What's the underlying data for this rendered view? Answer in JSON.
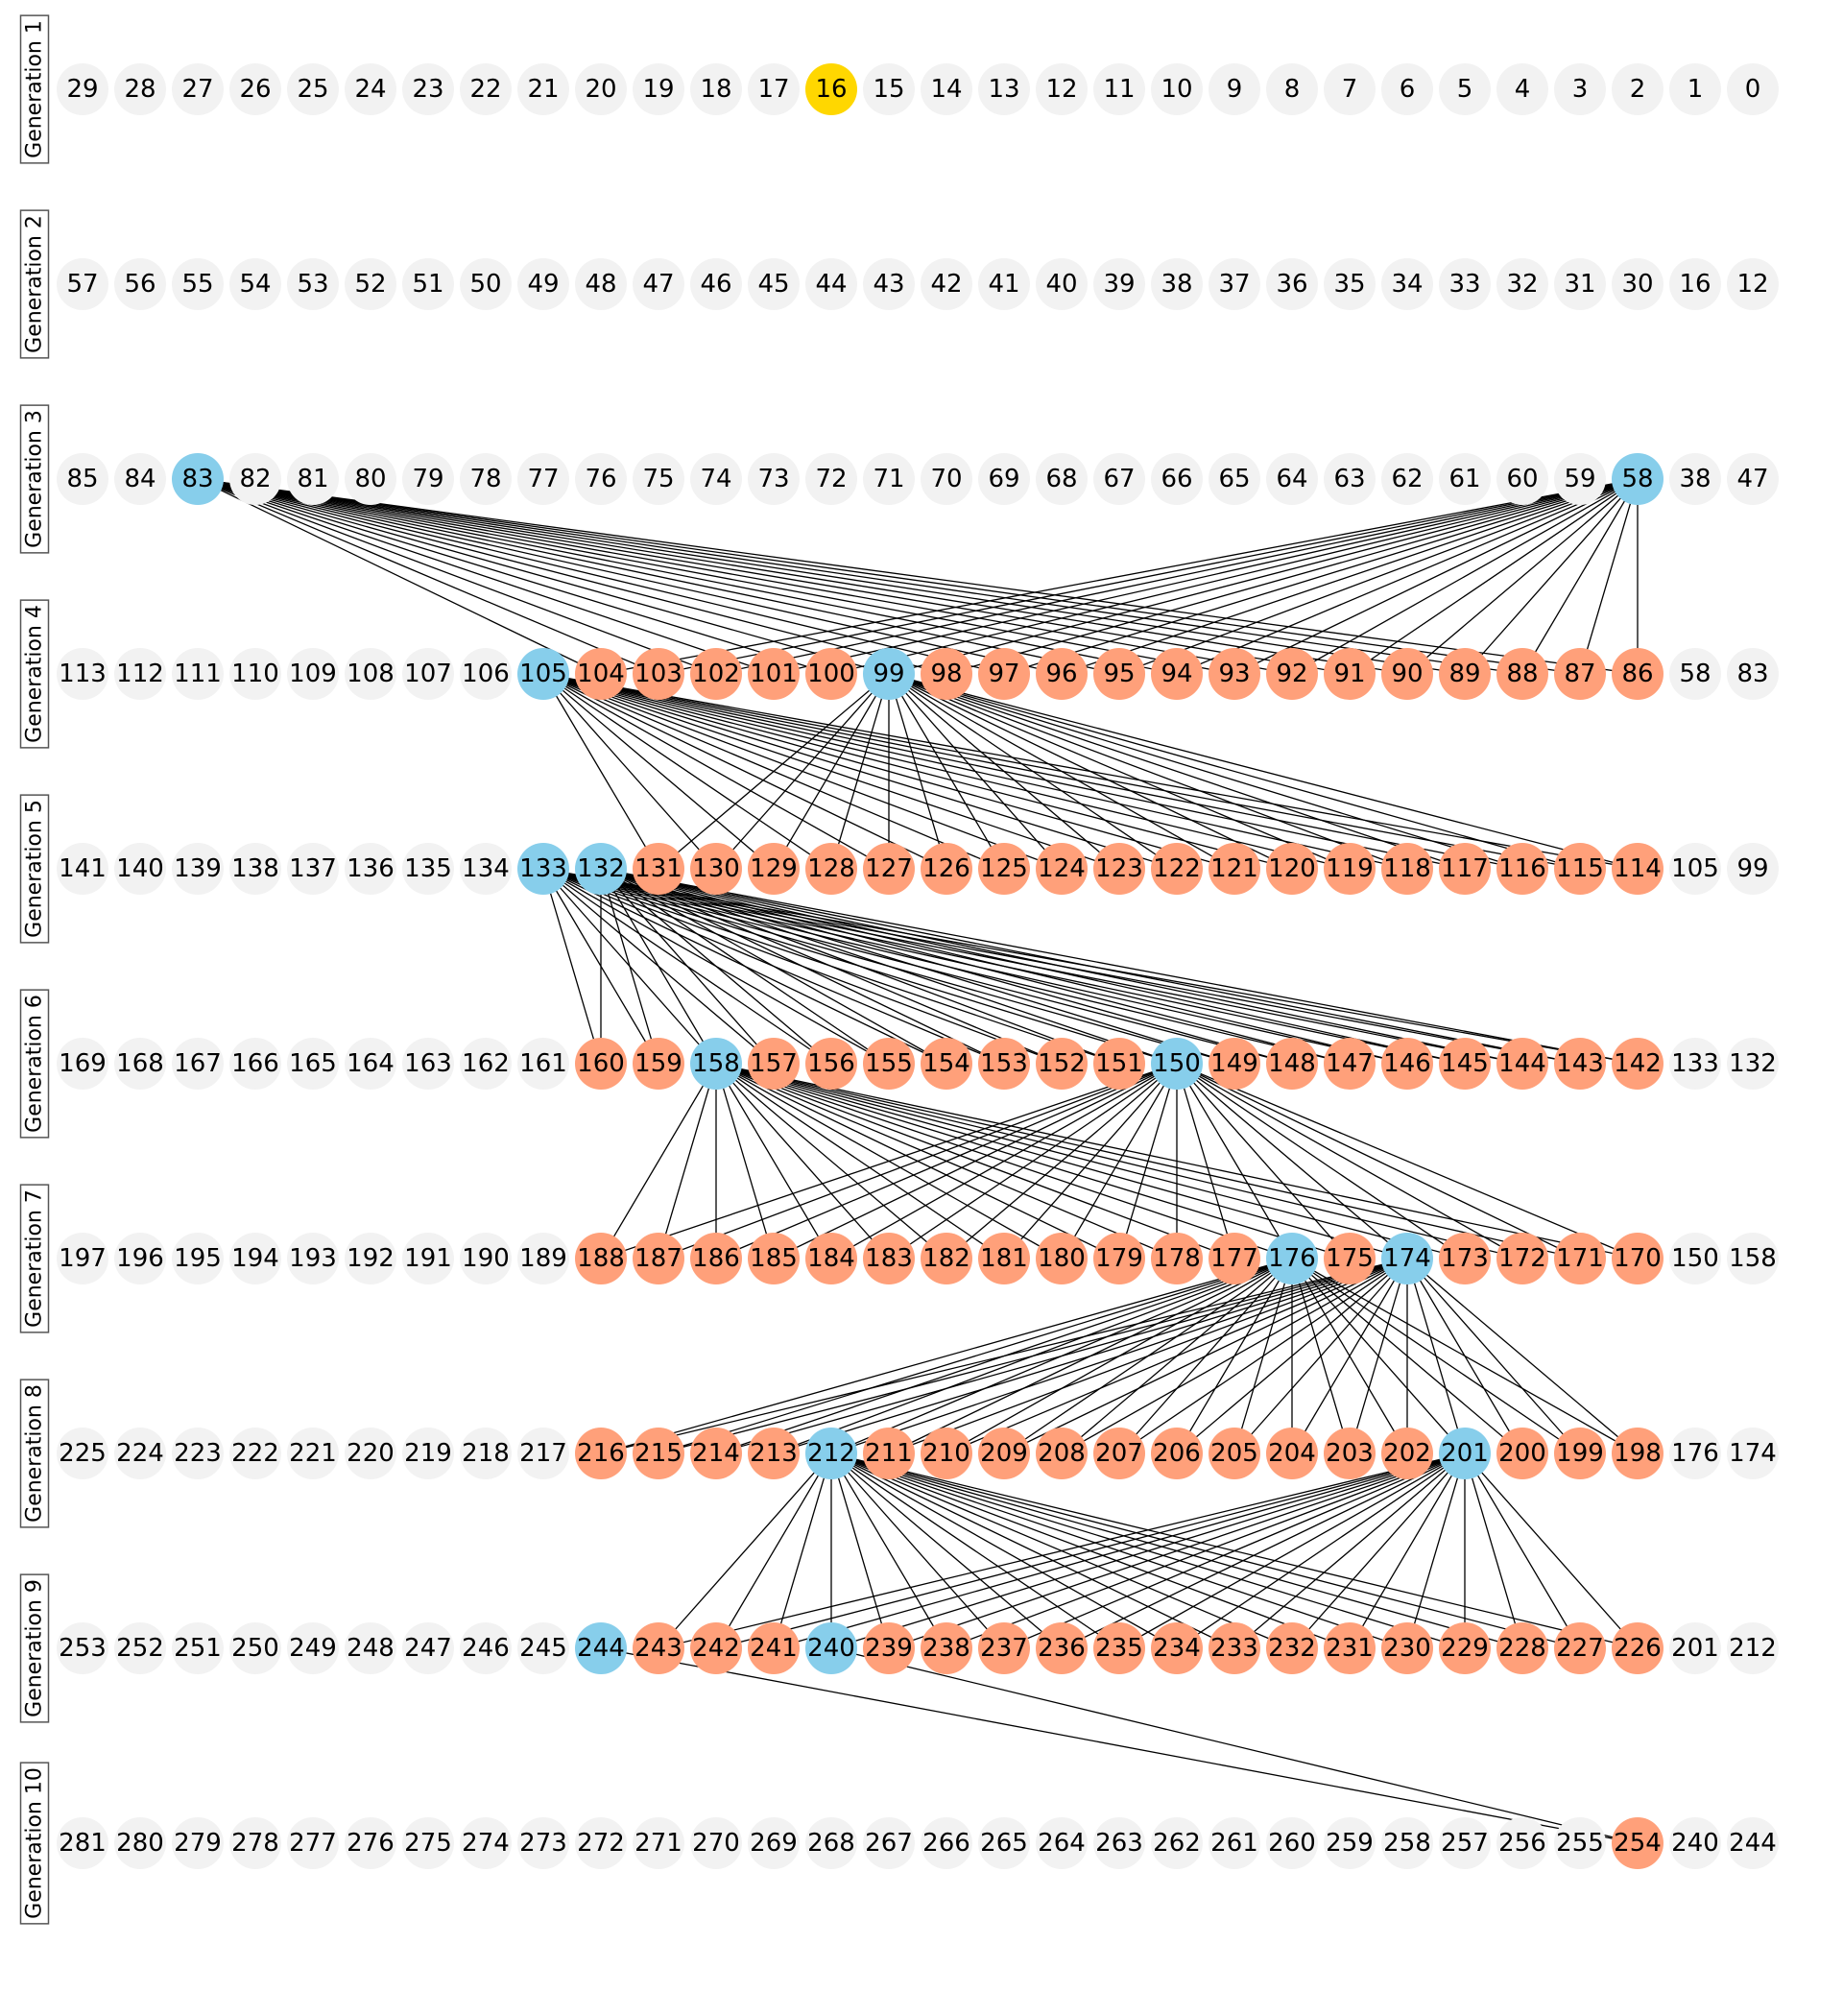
{
  "colors": {
    "default": "#f2f2f2",
    "highlight": "#ffd700",
    "parent": "#87ceeb",
    "child": "#ffa07a",
    "edge": "#000000"
  },
  "generations": [
    {
      "label": "Generation 1",
      "nodes": [
        29,
        28,
        27,
        26,
        25,
        24,
        23,
        22,
        21,
        20,
        19,
        18,
        17,
        16,
        15,
        14,
        13,
        12,
        11,
        10,
        9,
        8,
        7,
        6,
        5,
        4,
        3,
        2,
        1,
        0
      ]
    },
    {
      "label": "Generation 2",
      "nodes": [
        57,
        56,
        55,
        54,
        53,
        52,
        51,
        50,
        49,
        48,
        47,
        46,
        45,
        44,
        43,
        42,
        41,
        40,
        39,
        38,
        37,
        36,
        35,
        34,
        33,
        32,
        31,
        30,
        16,
        12
      ]
    },
    {
      "label": "Generation 3",
      "nodes": [
        85,
        84,
        83,
        82,
        81,
        80,
        79,
        78,
        77,
        76,
        75,
        74,
        73,
        72,
        71,
        70,
        69,
        68,
        67,
        66,
        65,
        64,
        63,
        62,
        61,
        60,
        59,
        58,
        38,
        47
      ]
    },
    {
      "label": "Generation 4",
      "nodes": [
        113,
        112,
        111,
        110,
        109,
        108,
        107,
        106,
        105,
        104,
        103,
        102,
        101,
        100,
        99,
        98,
        97,
        96,
        95,
        94,
        93,
        92,
        91,
        90,
        89,
        88,
        87,
        86,
        58,
        83
      ]
    },
    {
      "label": "Generation 5",
      "nodes": [
        141,
        140,
        139,
        138,
        137,
        136,
        135,
        134,
        133,
        132,
        131,
        130,
        129,
        128,
        127,
        126,
        125,
        124,
        123,
        122,
        121,
        120,
        119,
        118,
        117,
        116,
        115,
        114,
        105,
        99
      ]
    },
    {
      "label": "Generation 6",
      "nodes": [
        169,
        168,
        167,
        166,
        165,
        164,
        163,
        162,
        161,
        160,
        159,
        158,
        157,
        156,
        155,
        154,
        153,
        152,
        151,
        150,
        149,
        148,
        147,
        146,
        145,
        144,
        143,
        142,
        133,
        132
      ]
    },
    {
      "label": "Generation 7",
      "nodes": [
        197,
        196,
        195,
        194,
        193,
        192,
        191,
        190,
        189,
        188,
        187,
        186,
        185,
        184,
        183,
        182,
        181,
        180,
        179,
        178,
        177,
        176,
        175,
        174,
        173,
        172,
        171,
        170,
        150,
        158
      ]
    },
    {
      "label": "Generation 8",
      "nodes": [
        225,
        224,
        223,
        222,
        221,
        220,
        219,
        218,
        217,
        216,
        215,
        214,
        213,
        212,
        211,
        210,
        209,
        208,
        207,
        206,
        205,
        204,
        203,
        202,
        201,
        200,
        199,
        198,
        176,
        174
      ]
    },
    {
      "label": "Generation 9",
      "nodes": [
        253,
        252,
        251,
        250,
        249,
        248,
        247,
        246,
        245,
        244,
        243,
        242,
        241,
        240,
        239,
        238,
        237,
        236,
        235,
        234,
        233,
        232,
        231,
        230,
        229,
        228,
        227,
        226,
        201,
        212
      ]
    },
    {
      "label": "Generation 10",
      "nodes": [
        281,
        280,
        279,
        278,
        277,
        276,
        275,
        274,
        273,
        272,
        271,
        270,
        269,
        268,
        267,
        266,
        265,
        264,
        263,
        262,
        261,
        260,
        259,
        258,
        257,
        256,
        255,
        254,
        240,
        244
      ]
    }
  ],
  "node_colors": [
    {
      "gen": 0,
      "node": 16,
      "role": "highlight"
    },
    {
      "gen": 2,
      "node": 83,
      "role": "parent"
    },
    {
      "gen": 2,
      "node": 58,
      "role": "parent"
    },
    {
      "gen": 3,
      "node": 105,
      "role": "parent"
    },
    {
      "gen": 3,
      "node": 99,
      "role": "parent"
    },
    {
      "gen": 4,
      "node": 133,
      "role": "parent"
    },
    {
      "gen": 4,
      "node": 132,
      "role": "parent"
    },
    {
      "gen": 5,
      "node": 158,
      "role": "parent"
    },
    {
      "gen": 5,
      "node": 150,
      "role": "parent"
    },
    {
      "gen": 6,
      "node": 176,
      "role": "parent"
    },
    {
      "gen": 6,
      "node": 174,
      "role": "parent"
    },
    {
      "gen": 7,
      "node": 212,
      "role": "parent"
    },
    {
      "gen": 7,
      "node": 201,
      "role": "parent"
    },
    {
      "gen": 8,
      "node": 244,
      "role": "parent"
    },
    {
      "gen": 8,
      "node": 240,
      "role": "parent"
    }
  ],
  "child_ranges": [
    {
      "gen": 3,
      "first": 86,
      "last": 104
    },
    {
      "gen": 4,
      "first": 114,
      "last": 131
    },
    {
      "gen": 5,
      "first": 142,
      "last": 160
    },
    {
      "gen": 6,
      "first": 170,
      "last": 188
    },
    {
      "gen": 7,
      "first": 198,
      "last": 216
    },
    {
      "gen": 8,
      "first": 226,
      "last": 243
    },
    {
      "gen": 9,
      "first": 254,
      "last": 254
    }
  ],
  "edges": [
    {
      "parents": [
        2,
        83,
        58
      ],
      "children": [
        3,
        86,
        104
      ]
    },
    {
      "parents": [
        3,
        105,
        99
      ],
      "children": [
        4,
        114,
        131
      ]
    },
    {
      "parents": [
        4,
        133,
        132
      ],
      "children": [
        5,
        142,
        160
      ]
    },
    {
      "parents": [
        5,
        158,
        150
      ],
      "children": [
        6,
        170,
        188
      ]
    },
    {
      "parents": [
        6,
        176,
        174
      ],
      "children": [
        7,
        198,
        216
      ]
    },
    {
      "parents": [
        7,
        212,
        201
      ],
      "children": [
        8,
        226,
        243
      ]
    },
    {
      "parents": [
        8,
        244,
        240
      ],
      "children": [
        9,
        254,
        254
      ]
    }
  ]
}
